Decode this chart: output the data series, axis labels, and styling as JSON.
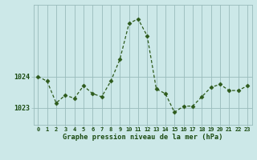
{
  "x": [
    0,
    1,
    2,
    3,
    4,
    5,
    6,
    7,
    8,
    9,
    10,
    11,
    12,
    13,
    14,
    15,
    16,
    17,
    18,
    19,
    20,
    21,
    22,
    23
  ],
  "y": [
    1024.0,
    1023.85,
    1023.15,
    1023.4,
    1023.3,
    1023.7,
    1023.45,
    1023.35,
    1023.85,
    1024.55,
    1025.7,
    1025.85,
    1025.3,
    1023.6,
    1023.45,
    1022.85,
    1023.05,
    1023.05,
    1023.35,
    1023.65,
    1023.75,
    1023.55,
    1023.55,
    1023.7
  ],
  "line_color": "#2d5a1b",
  "marker_color": "#2d5a1b",
  "bg_color": "#cce8e8",
  "grid_color": "#99bbbb",
  "xlabel": "Graphe pression niveau de la mer (hPa)",
  "xlabel_color": "#1a4a10",
  "tick_label_color": "#1a4a10",
  "ytick_labels": [
    "1023",
    "1024"
  ],
  "ytick_values": [
    1023.0,
    1024.0
  ],
  "ylim": [
    1022.45,
    1026.3
  ],
  "xlim": [
    -0.5,
    23.5
  ],
  "xtick_values": [
    0,
    1,
    2,
    3,
    4,
    5,
    6,
    7,
    8,
    9,
    10,
    11,
    12,
    13,
    14,
    15,
    16,
    17,
    18,
    19,
    20,
    21,
    22,
    23
  ]
}
